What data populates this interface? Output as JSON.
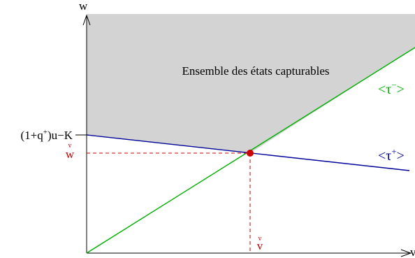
{
  "axes": {
    "y_label": "w",
    "x_label": "v"
  },
  "region": {
    "label": "Ensemble des états capturables"
  },
  "lines": {
    "tau_minus": {
      "label_base": "<τ",
      "label_sup": "−",
      "label_end": ">"
    },
    "tau_plus": {
      "label_base": "<τ",
      "label_sup": "+",
      "label_end": ">"
    }
  },
  "ticks": {
    "y_intercept_label": "(1+q",
    "y_intercept_sup": "+",
    "y_intercept_rest": ")u−K",
    "w_check": "w",
    "w_check_accent": "v",
    "v_check": "v",
    "v_check_accent": "v"
  },
  "colors": {
    "region_fill": "#d3d3d3",
    "tau_minus": "#00b000",
    "tau_plus": "#000099",
    "intersection": "#cc0000",
    "axis": "#000000"
  }
}
